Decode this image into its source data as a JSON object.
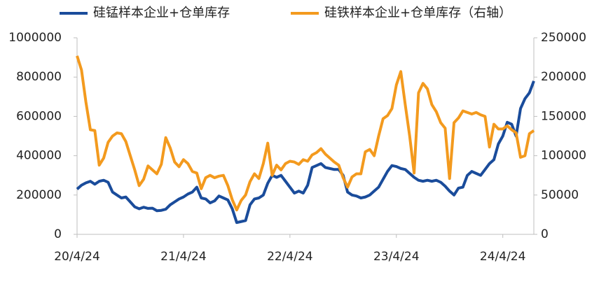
{
  "chart_data": {
    "type": "line",
    "categories": [
      "20/4/24",
      null,
      null,
      null,
      null,
      null,
      null,
      null,
      null,
      null,
      null,
      null,
      null,
      null,
      null,
      null,
      null,
      null,
      null,
      null,
      null,
      null,
      null,
      null,
      "21/4/24",
      null,
      null,
      null,
      null,
      null,
      null,
      null,
      null,
      null,
      null,
      null,
      null,
      null,
      null,
      null,
      null,
      null,
      null,
      null,
      null,
      null,
      null,
      null,
      "22/4/24",
      null,
      null,
      null,
      null,
      null,
      null,
      null,
      null,
      null,
      null,
      null,
      null,
      null,
      null,
      null,
      null,
      null,
      null,
      null,
      null,
      null,
      null,
      null,
      "23/4/24",
      null,
      null,
      null,
      null,
      null,
      null,
      null,
      null,
      null,
      null,
      null,
      null,
      null,
      null,
      null,
      null,
      null,
      null,
      null,
      null,
      null,
      null,
      null,
      "24/4/24",
      null,
      null,
      null,
      null,
      null,
      null,
      null
    ],
    "series": [
      {
        "name": "硅锰样本企业+仓单库存",
        "color": "#1a4c9b",
        "axis": "y",
        "values": [
          230000,
          250000,
          262000,
          270000,
          255000,
          270000,
          275000,
          265000,
          215000,
          200000,
          185000,
          190000,
          165000,
          140000,
          130000,
          138000,
          132000,
          133000,
          120000,
          122000,
          128000,
          150000,
          165000,
          180000,
          190000,
          205000,
          215000,
          240000,
          185000,
          180000,
          160000,
          170000,
          195000,
          185000,
          175000,
          130000,
          60000,
          65000,
          70000,
          150000,
          180000,
          185000,
          200000,
          260000,
          300000,
          290000,
          300000,
          270000,
          240000,
          210000,
          220000,
          210000,
          250000,
          340000,
          350000,
          360000,
          340000,
          335000,
          330000,
          330000,
          300000,
          215000,
          200000,
          195000,
          185000,
          190000,
          200000,
          220000,
          240000,
          280000,
          320000,
          350000,
          345000,
          335000,
          330000,
          310000,
          290000,
          275000,
          270000,
          275000,
          270000,
          275000,
          265000,
          245000,
          220000,
          200000,
          235000,
          240000,
          300000,
          320000,
          310000,
          300000,
          330000,
          360000,
          380000,
          460000,
          500000,
          570000,
          560000,
          500000,
          640000,
          690000,
          720000,
          780000
        ]
      },
      {
        "name": "硅铁样本企业+仓单库存（右轴）",
        "color": "#f39a1e",
        "axis": "y2",
        "values": [
          227000,
          209000,
          168000,
          133000,
          132000,
          88000,
          97000,
          117000,
          125000,
          129000,
          128000,
          118000,
          100000,
          82000,
          62000,
          70000,
          87000,
          82000,
          77000,
          89000,
          123000,
          110000,
          92000,
          86000,
          95000,
          90000,
          80000,
          78000,
          58000,
          72000,
          75000,
          72000,
          74000,
          75000,
          62000,
          44000,
          31000,
          43000,
          50000,
          67000,
          77000,
          71000,
          90000,
          116000,
          75000,
          88000,
          82000,
          90000,
          93000,
          92000,
          89000,
          95000,
          93000,
          101000,
          104000,
          109000,
          102000,
          97000,
          92000,
          88000,
          72000,
          60000,
          73000,
          77000,
          77000,
          105000,
          108000,
          100000,
          125000,
          147000,
          151000,
          160000,
          190000,
          207000,
          165000,
          125000,
          78000,
          180000,
          192000,
          185000,
          165000,
          156000,
          142000,
          135000,
          71000,
          142000,
          148000,
          157000,
          155000,
          153000,
          155000,
          152000,
          150000,
          111000,
          140000,
          134000,
          134000,
          138000,
          133000,
          129000,
          98000,
          100000,
          128000,
          132000
        ]
      }
    ],
    "ylim": [
      0,
      1000000
    ],
    "yticks": [
      0,
      200000,
      400000,
      600000,
      800000,
      1000000
    ],
    "y2lim": [
      0,
      250000
    ],
    "y2ticks": [
      0,
      50000,
      100000,
      150000,
      200000,
      250000
    ],
    "grid": false,
    "legend": "top"
  }
}
